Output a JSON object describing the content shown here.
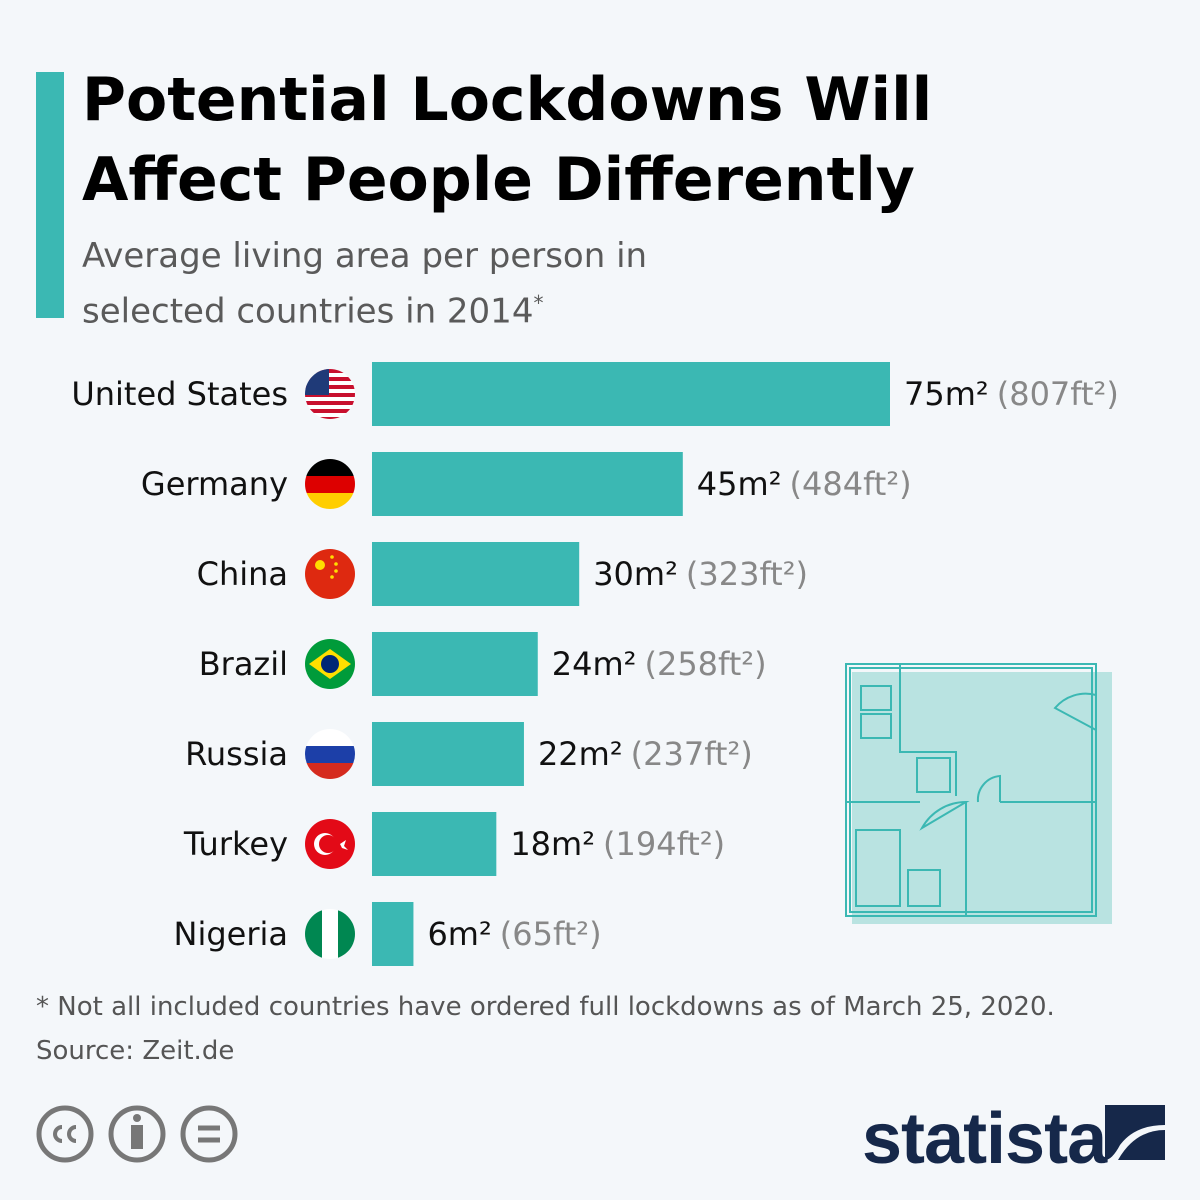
{
  "chart_data": {
    "type": "hbar",
    "title": "Potential Lockdowns Will Affect People Differently",
    "subtitle": "Average living area per person in selected countries in 2014",
    "subtitle_mark": "*",
    "categories": [
      "United States",
      "Germany",
      "China",
      "Brazil",
      "Russia",
      "Turkey",
      "Nigeria"
    ],
    "values": [
      75,
      45,
      30,
      24,
      22,
      18,
      6
    ],
    "value_labels": [
      "75m²",
      "45m²",
      "30m²",
      "24m²",
      "22m²",
      "18m²",
      "6m²"
    ],
    "secondary_labels": [
      "(807ft²)",
      "(484ft²)",
      "(323ft²)",
      "(258ft²)",
      "(237ft²)",
      "(194ft²)",
      "(65ft²)"
    ],
    "color": "#3bb8b3",
    "footnote": "* Not all included countries have ordered full lockdowns as of March 25, 2020.",
    "source": "Source: Zeit.de",
    "brand": "statista"
  }
}
